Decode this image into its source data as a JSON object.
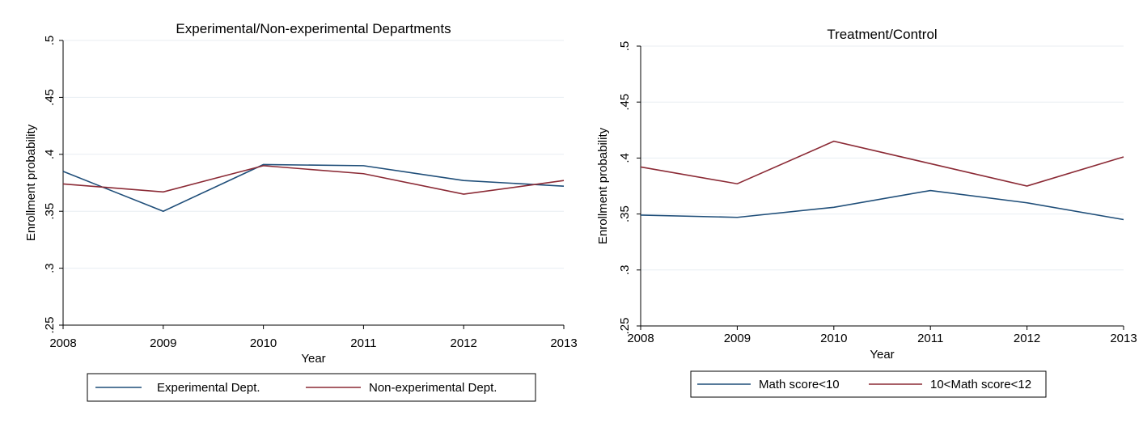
{
  "chart_data": [
    {
      "type": "line",
      "title": "Experimental/Non-experimental Departments",
      "xlabel": "Year",
      "ylabel": "Enrollment probability",
      "x": [
        2008,
        2009,
        2010,
        2011,
        2012,
        2013
      ],
      "xticks": [
        "2008",
        "2009",
        "2010",
        "2011",
        "2012",
        "2013"
      ],
      "ylim": [
        0.25,
        0.5
      ],
      "yticks": [
        ".25",
        ".3",
        ".35",
        ".4",
        ".45",
        ".5"
      ],
      "ytick_values": [
        0.25,
        0.3,
        0.35,
        0.4,
        0.45,
        0.5
      ],
      "grid": true,
      "legend_position": "bottom",
      "series": [
        {
          "name": "Experimental Dept.",
          "color": "#1f4e79",
          "values": [
            0.385,
            0.35,
            0.391,
            0.39,
            0.377,
            0.372
          ]
        },
        {
          "name": "Non-experimental Dept.",
          "color": "#8b2a35",
          "values": [
            0.374,
            0.367,
            0.39,
            0.383,
            0.365,
            0.377
          ]
        }
      ]
    },
    {
      "type": "line",
      "title": "Treatment/Control",
      "xlabel": "Year",
      "ylabel": "Enrollment probability",
      "x": [
        2008,
        2009,
        2010,
        2011,
        2012,
        2013
      ],
      "xticks": [
        "2008",
        "2009",
        "2010",
        "2011",
        "2012",
        "2013"
      ],
      "ylim": [
        0.25,
        0.5
      ],
      "yticks": [
        ".25",
        ".3",
        ".35",
        ".4",
        ".45",
        ".5"
      ],
      "ytick_values": [
        0.25,
        0.3,
        0.35,
        0.4,
        0.45,
        0.5
      ],
      "grid": true,
      "legend_position": "bottom",
      "series": [
        {
          "name": "Math score<10",
          "color": "#1f4e79",
          "values": [
            0.349,
            0.347,
            0.356,
            0.371,
            0.36,
            0.345
          ]
        },
        {
          "name": "10<Math score<12",
          "color": "#8b2a35",
          "values": [
            0.392,
            0.377,
            0.415,
            0.395,
            0.375,
            0.401
          ]
        }
      ]
    }
  ]
}
